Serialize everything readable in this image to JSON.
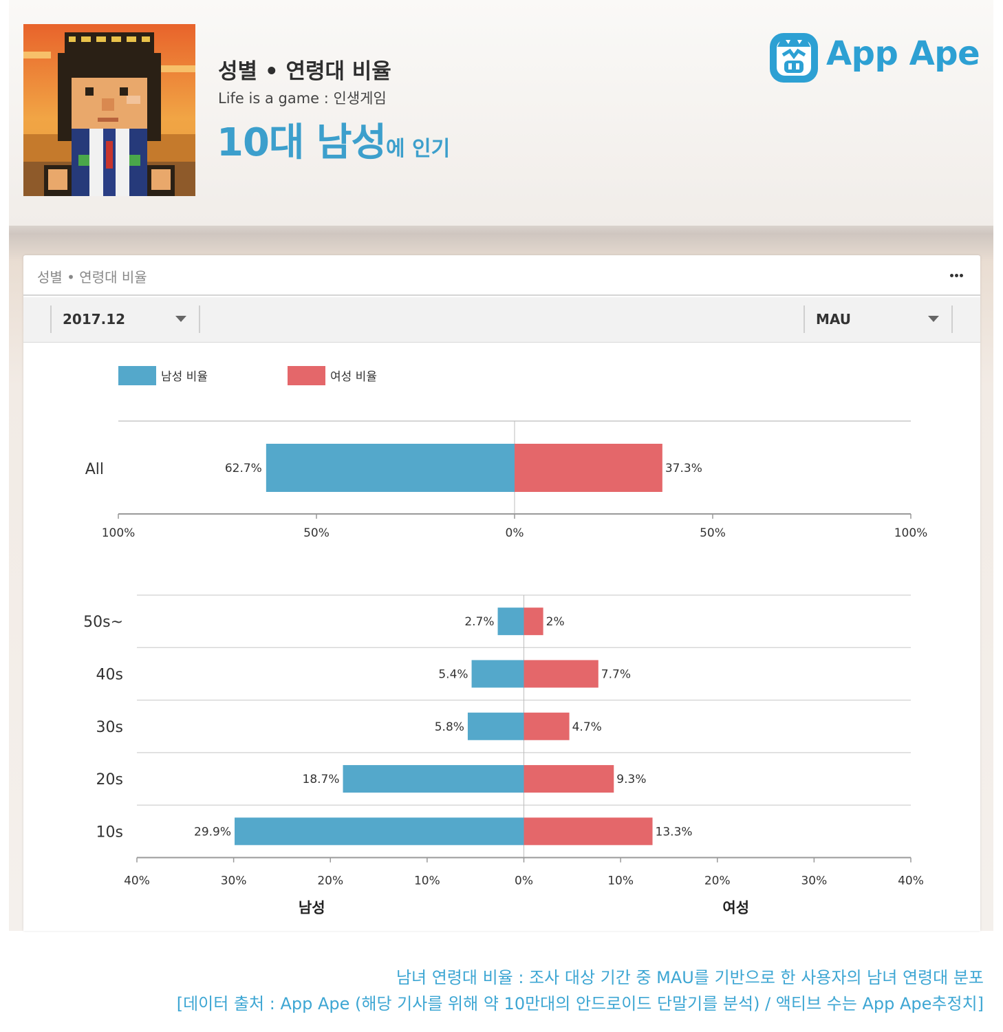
{
  "header": {
    "title": "성별 • 연령대 비율",
    "app_name": "Life is a game : 인생게임",
    "headline_big": "10대 남성",
    "headline_small": "에 인기"
  },
  "brand": {
    "name": "App Ape",
    "color": "#2da0d3"
  },
  "panel": {
    "title": "성별 • 연령대 비율",
    "more_icon": "more-icon",
    "date_select": "2017.12",
    "metric_select": "MAU"
  },
  "colors": {
    "male": "#54a8cb",
    "female": "#e4676a",
    "accent": "#3c9fcc"
  },
  "chart_data": [
    {
      "type": "bar",
      "orientation": "horizontal-diverging",
      "legend": [
        "남성 비율",
        "여성 비율"
      ],
      "legend_placement": "top-left",
      "categories": [
        "All"
      ],
      "series": [
        {
          "name": "남성 비율",
          "values": [
            62.7
          ],
          "labels": [
            "62.7%"
          ]
        },
        {
          "name": "여성 비율",
          "values": [
            37.3
          ],
          "labels": [
            "37.3%"
          ]
        }
      ],
      "xlim": [
        0,
        100
      ],
      "xticks": [
        "100%",
        "50%",
        "0%",
        "50%",
        "100%"
      ],
      "grid": false
    },
    {
      "type": "bar",
      "orientation": "horizontal-diverging",
      "categories": [
        "50s~",
        "40s",
        "30s",
        "20s",
        "10s"
      ],
      "series": [
        {
          "name": "남성 비율",
          "values": [
            2.7,
            5.4,
            5.8,
            18.7,
            29.9
          ],
          "labels": [
            "2.7%",
            "5.4%",
            "5.8%",
            "18.7%",
            "29.9%"
          ]
        },
        {
          "name": "여성 비율",
          "values": [
            2,
            7.7,
            4.7,
            9.3,
            13.3
          ],
          "labels": [
            "2%",
            "7.7%",
            "4.7%",
            "9.3%",
            "13.3%"
          ]
        }
      ],
      "xlim": [
        0,
        40
      ],
      "xticks": [
        "40%",
        "30%",
        "20%",
        "10%",
        "0%",
        "10%",
        "20%",
        "30%",
        "40%"
      ],
      "side_labels": [
        "남성",
        "여성"
      ],
      "grid": "horizontal"
    }
  ],
  "caption": {
    "line1": "남녀 연령대 비율 : 조사 대상 기간 중 MAU를 기반으로 한 사용자의 남녀 연령대 분포",
    "line2": "[데이터 출처 : App Ape (해당 기사를 위해 약 10만대의 안드로이드 단말기를 분석) / 액티브 수는 App Ape추정치]"
  }
}
